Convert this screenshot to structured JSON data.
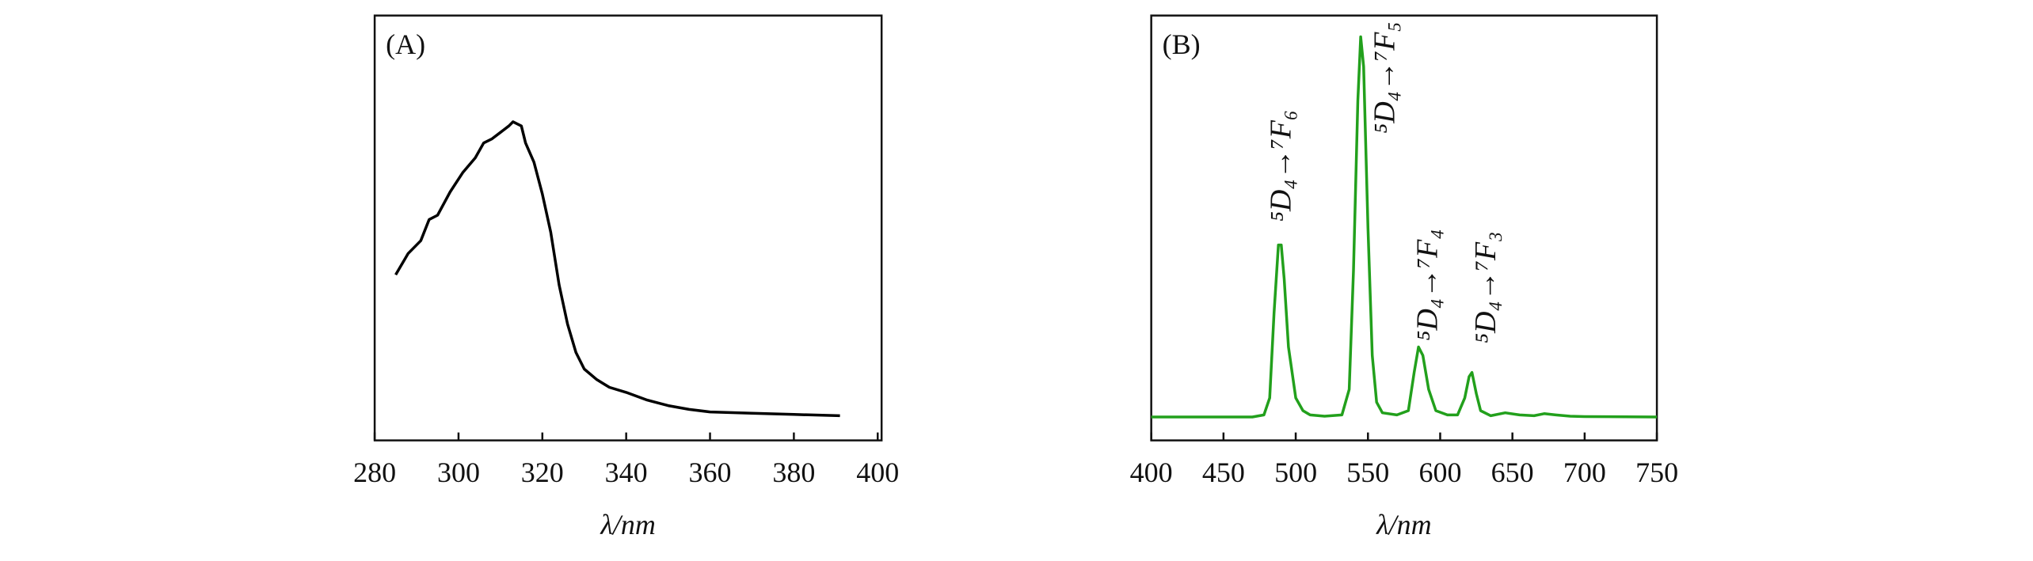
{
  "chart_data": [
    {
      "type": "line",
      "title": "(A)",
      "x_label": "λ/nm",
      "color": "#000000",
      "x": [
        285,
        288,
        291,
        293,
        295,
        298,
        301,
        304,
        306,
        308,
        310,
        312,
        313,
        315,
        316,
        318,
        320,
        322,
        324,
        326,
        328,
        330,
        333,
        336,
        340,
        345,
        350,
        355,
        360,
        370,
        380,
        391
      ],
      "values": [
        0.39,
        0.44,
        0.47,
        0.52,
        0.53,
        0.585,
        0.63,
        0.665,
        0.7,
        0.71,
        0.725,
        0.74,
        0.75,
        0.74,
        0.7,
        0.655,
        0.58,
        0.49,
        0.366,
        0.274,
        0.207,
        0.168,
        0.143,
        0.125,
        0.113,
        0.095,
        0.082,
        0.073,
        0.067,
        0.064,
        0.061,
        0.058
      ],
      "xlim": [
        280,
        400
      ],
      "xticks": [
        280,
        300,
        320,
        340,
        360,
        380,
        400
      ],
      "ylim": [
        0,
        1
      ]
    },
    {
      "type": "line",
      "title": "(B)",
      "x_label": "λ/nm",
      "color": "#22a01c",
      "x": [
        400,
        470,
        478,
        482,
        485,
        488,
        490,
        492,
        495,
        500,
        505,
        510,
        520,
        532,
        537,
        540,
        543,
        545,
        547,
        550,
        553,
        556,
        560,
        570,
        578,
        582,
        585,
        588,
        592,
        597,
        605,
        612,
        617,
        620,
        622,
        625,
        628,
        635,
        645,
        655,
        665,
        672,
        680,
        690,
        700,
        750
      ],
      "values": [
        0.055,
        0.055,
        0.06,
        0.1,
        0.3,
        0.46,
        0.46,
        0.38,
        0.22,
        0.1,
        0.07,
        0.06,
        0.057,
        0.06,
        0.12,
        0.4,
        0.8,
        0.95,
        0.88,
        0.5,
        0.2,
        0.09,
        0.065,
        0.06,
        0.07,
        0.16,
        0.22,
        0.2,
        0.12,
        0.07,
        0.06,
        0.06,
        0.1,
        0.15,
        0.16,
        0.11,
        0.07,
        0.058,
        0.065,
        0.06,
        0.058,
        0.063,
        0.06,
        0.057,
        0.056,
        0.055
      ],
      "xlim": [
        400,
        750
      ],
      "xticks": [
        400,
        450,
        500,
        550,
        600,
        650,
        700,
        750
      ],
      "ylim": [
        0,
        1
      ],
      "annotations": [
        "⁵D₄→⁷F₆",
        "⁵D₄→⁷F₅",
        "⁵D₄→⁷F₄",
        "⁵D₄→⁷F₃"
      ]
    }
  ]
}
